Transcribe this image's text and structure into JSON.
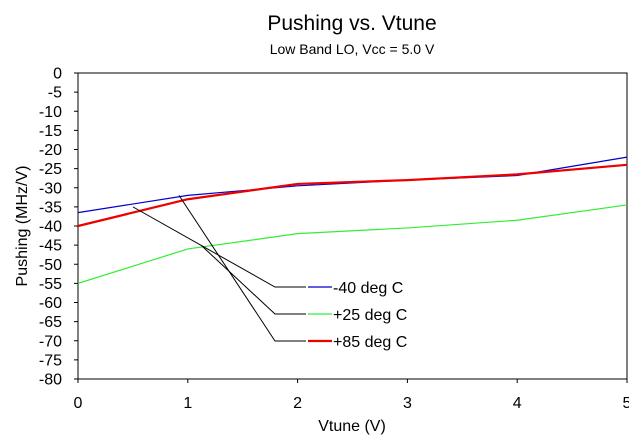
{
  "chart_data": {
    "type": "line",
    "title": "Pushing vs. Vtune",
    "subtitle": "Low Band LO, Vcc = 5.0 V",
    "xlabel": "Vtune (V)",
    "ylabel": "Pushing (MHz/V)",
    "xlim": [
      0,
      5
    ],
    "ylim": [
      -80,
      0
    ],
    "xticks": [
      0,
      1,
      2,
      3,
      4,
      5
    ],
    "yticks": [
      0,
      -5,
      -10,
      -15,
      -20,
      -25,
      -30,
      -35,
      -40,
      -45,
      -50,
      -55,
      -60,
      -65,
      -70,
      -75,
      -80
    ],
    "grid": false,
    "legend_position": "lower-center",
    "series": [
      {
        "name": "-40 deg C",
        "color": "#0000cc",
        "width": 1.2,
        "x": [
          0,
          1,
          2,
          3,
          4,
          5
        ],
        "y": [
          -36.5,
          -32,
          -29.5,
          -28,
          -26.8,
          -22
        ]
      },
      {
        "name": "+25 deg C",
        "color": "#33ee33",
        "width": 1.2,
        "x": [
          0,
          1,
          2,
          3,
          4,
          5
        ],
        "y": [
          -55,
          -46,
          -42,
          -40.5,
          -38.5,
          -34.5
        ]
      },
      {
        "name": "+85 deg C",
        "color": "#ee0000",
        "width": 2.2,
        "x": [
          0,
          1,
          2,
          3,
          4,
          5
        ],
        "y": [
          -40,
          -33,
          -29,
          -28,
          -26.5,
          -24
        ]
      }
    ],
    "annotations": [
      {
        "series": "-40 deg C",
        "x": 0.5,
        "y": -35
      },
      {
        "series": "+25 deg C",
        "x": 1.12,
        "y": -45
      },
      {
        "series": "+85 deg C",
        "x": 0.92,
        "y": -32
      }
    ]
  }
}
